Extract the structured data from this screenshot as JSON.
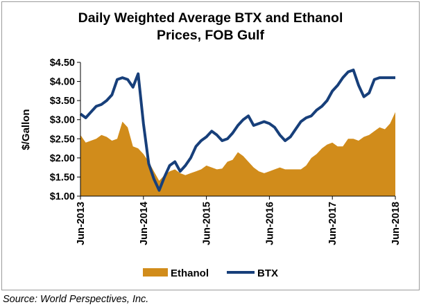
{
  "title_line1": "Daily Weighted Average BTX and Ethanol",
  "title_line2": "Prices, FOB Gulf",
  "source": "Source: World Perspectives, Inc.",
  "colors": {
    "ethanol": "#D18C1B",
    "btx": "#173F7A",
    "axis": "#000000"
  },
  "chart_data": {
    "type": "line",
    "title": "Daily Weighted Average BTX and Ethanol Prices, FOB Gulf",
    "xlabel": "",
    "ylabel": "$/Gallon",
    "ylim": [
      1.0,
      4.5
    ],
    "xlim": [
      "2013-06",
      "2018-06"
    ],
    "x_tick_labels": [
      "Jun-2013",
      "Jun-2014",
      "Jun-2015",
      "Jun-2016",
      "Jun-2017",
      "Jun-2018"
    ],
    "y_ticks": [
      1.0,
      1.5,
      2.0,
      2.5,
      3.0,
      3.5,
      4.0,
      4.5
    ],
    "y_tick_labels": [
      "$1.00",
      "$1.50",
      "$2.00",
      "$2.50",
      "$3.00",
      "$3.50",
      "$4.00",
      "$4.50"
    ],
    "grid": false,
    "legend_position": "bottom",
    "series": [
      {
        "name": "Ethanol",
        "type": "area",
        "x": [
          "2013-06",
          "2013-07",
          "2013-08",
          "2013-09",
          "2013-10",
          "2013-11",
          "2013-12",
          "2014-01",
          "2014-02",
          "2014-03",
          "2014-04",
          "2014-05",
          "2014-06",
          "2014-07",
          "2014-08",
          "2014-09",
          "2014-10",
          "2014-11",
          "2014-12",
          "2015-01",
          "2015-02",
          "2015-03",
          "2015-04",
          "2015-05",
          "2015-06",
          "2015-07",
          "2015-08",
          "2015-09",
          "2015-10",
          "2015-11",
          "2015-12",
          "2016-01",
          "2016-02",
          "2016-03",
          "2016-04",
          "2016-05",
          "2016-06",
          "2016-07",
          "2016-08",
          "2016-09",
          "2016-10",
          "2016-11",
          "2016-12",
          "2017-01",
          "2017-02",
          "2017-03",
          "2017-04",
          "2017-05",
          "2017-06",
          "2017-07",
          "2017-08",
          "2017-09",
          "2017-10",
          "2017-11",
          "2017-12",
          "2018-01",
          "2018-02",
          "2018-03",
          "2018-04",
          "2018-05",
          "2018-06"
        ],
        "values": [
          2.6,
          2.4,
          2.45,
          2.5,
          2.6,
          2.55,
          2.45,
          2.5,
          2.95,
          2.8,
          2.3,
          2.25,
          2.1,
          1.9,
          1.65,
          1.4,
          1.55,
          1.65,
          1.7,
          1.6,
          1.55,
          1.6,
          1.65,
          1.7,
          1.8,
          1.75,
          1.7,
          1.72,
          1.9,
          1.95,
          2.15,
          2.05,
          1.9,
          1.75,
          1.65,
          1.6,
          1.65,
          1.7,
          1.75,
          1.7,
          1.7,
          1.7,
          1.7,
          1.8,
          2.0,
          2.1,
          2.25,
          2.35,
          2.4,
          2.3,
          2.3,
          2.5,
          2.5,
          2.45,
          2.55,
          2.6,
          2.7,
          2.8,
          2.75,
          2.9,
          3.2
        ]
      },
      {
        "name": "BTX",
        "type": "line",
        "x": [
          "2013-06",
          "2013-07",
          "2013-08",
          "2013-09",
          "2013-10",
          "2013-11",
          "2013-12",
          "2014-01",
          "2014-02",
          "2014-03",
          "2014-04",
          "2014-05",
          "2014-06",
          "2014-07",
          "2014-08",
          "2014-09",
          "2014-10",
          "2014-11",
          "2014-12",
          "2015-01",
          "2015-02",
          "2015-03",
          "2015-04",
          "2015-05",
          "2015-06",
          "2015-07",
          "2015-08",
          "2015-09",
          "2015-10",
          "2015-11",
          "2015-12",
          "2016-01",
          "2016-02",
          "2016-03",
          "2016-04",
          "2016-05",
          "2016-06",
          "2016-07",
          "2016-08",
          "2016-09",
          "2016-10",
          "2016-11",
          "2016-12",
          "2017-01",
          "2017-02",
          "2017-03",
          "2017-04",
          "2017-05",
          "2017-06",
          "2017-07",
          "2017-08",
          "2017-09",
          "2017-10",
          "2017-11",
          "2017-12",
          "2018-01",
          "2018-02",
          "2018-03",
          "2018-04",
          "2018-05",
          "2018-06"
        ],
        "values": [
          3.15,
          3.05,
          3.2,
          3.35,
          3.4,
          3.5,
          3.65,
          4.05,
          4.1,
          4.05,
          3.85,
          4.2,
          2.9,
          1.85,
          1.45,
          1.15,
          1.5,
          1.8,
          1.9,
          1.65,
          1.8,
          2.0,
          2.3,
          2.45,
          2.55,
          2.7,
          2.6,
          2.45,
          2.5,
          2.65,
          2.85,
          3.0,
          3.1,
          2.85,
          2.9,
          2.95,
          2.9,
          2.8,
          2.6,
          2.45,
          2.55,
          2.75,
          2.95,
          3.05,
          3.1,
          3.25,
          3.35,
          3.5,
          3.75,
          3.9,
          4.1,
          4.25,
          4.3,
          3.9,
          3.6,
          3.7,
          4.05,
          4.1,
          4.1,
          4.1,
          4.1
        ]
      }
    ]
  }
}
